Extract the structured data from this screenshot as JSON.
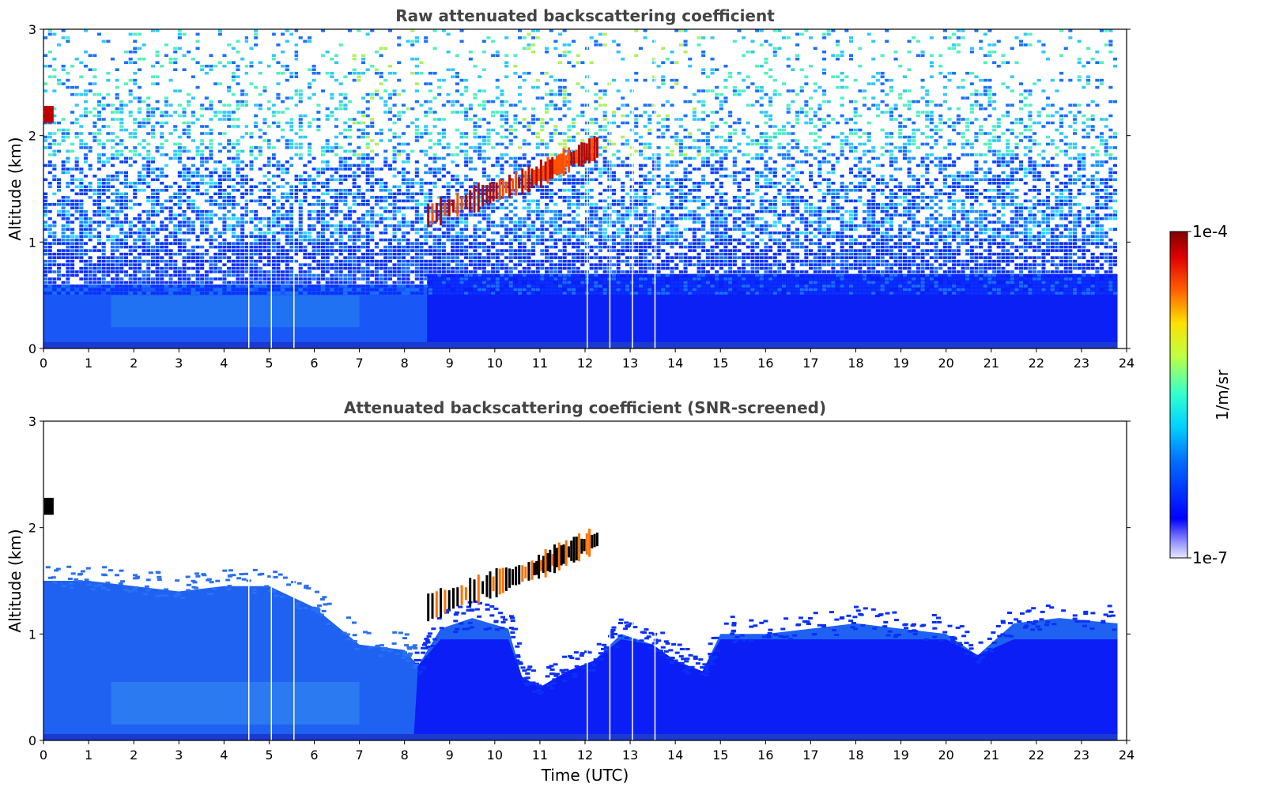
{
  "chart_data": [
    {
      "type": "heatmap",
      "title": "Raw attenuated backscattering coefficient",
      "xlabel": "",
      "ylabel": "Altitude (km)",
      "xlim": [
        0,
        24
      ],
      "ylim": [
        0,
        3
      ],
      "xticks": [
        0,
        1,
        2,
        3,
        4,
        5,
        6,
        7,
        8,
        9,
        10,
        11,
        12,
        13,
        14,
        15,
        16,
        17,
        18,
        19,
        20,
        21,
        22,
        23,
        24
      ],
      "yticks": [
        0,
        1,
        2,
        3
      ],
      "data_extent_x": [
        0,
        23.8
      ],
      "color_scale": "log",
      "gap_times": [
        4.55,
        5.05,
        5.55,
        12.05,
        12.55,
        13.05,
        13.55
      ],
      "features": {
        "boundary_layer_top_km": 0.6,
        "signal_noise_increase_above_km": 1.0,
        "aerosol_layer_top_km": 1.5,
        "rising_cloud_layer": [
          {
            "t": 8.5,
            "z": 1.25
          },
          {
            "t": 9.8,
            "z": 1.45
          },
          {
            "t": 10.8,
            "z": 1.6
          },
          {
            "t": 11.5,
            "z": 1.75
          },
          {
            "t": 12.3,
            "z": 1.9
          }
        ],
        "early_cloud": {
          "t": 0.05,
          "z": 2.2
        }
      }
    },
    {
      "type": "heatmap",
      "title": "Attenuated backscattering coefficient (SNR-screened)",
      "xlabel": "Time (UTC)",
      "ylabel": "Altitude (km)",
      "xlim": [
        0,
        24
      ],
      "ylim": [
        0,
        3
      ],
      "xticks": [
        0,
        1,
        2,
        3,
        4,
        5,
        6,
        7,
        8,
        9,
        10,
        11,
        12,
        13,
        14,
        15,
        16,
        17,
        18,
        19,
        20,
        21,
        22,
        23,
        24
      ],
      "yticks": [
        0,
        1,
        2,
        3
      ],
      "data_extent_x": [
        0,
        23.8
      ],
      "color_scale": "log",
      "gap_times": [
        4.55,
        5.05,
        5.55,
        12.05,
        12.55,
        13.05,
        13.55
      ],
      "signal_top_profile": [
        {
          "t": 0.0,
          "z": 1.5
        },
        {
          "t": 1.0,
          "z": 1.5
        },
        {
          "t": 2.0,
          "z": 1.45
        },
        {
          "t": 3.0,
          "z": 1.4
        },
        {
          "t": 4.0,
          "z": 1.45
        },
        {
          "t": 5.0,
          "z": 1.45
        },
        {
          "t": 6.0,
          "z": 1.25
        },
        {
          "t": 7.0,
          "z": 0.9
        },
        {
          "t": 8.0,
          "z": 0.85
        },
        {
          "t": 8.3,
          "z": 0.7
        },
        {
          "t": 8.8,
          "z": 1.05
        },
        {
          "t": 9.5,
          "z": 1.15
        },
        {
          "t": 10.3,
          "z": 1.05
        },
        {
          "t": 10.6,
          "z": 0.6
        },
        {
          "t": 11.0,
          "z": 0.5
        },
        {
          "t": 11.6,
          "z": 0.65
        },
        {
          "t": 12.2,
          "z": 0.75
        },
        {
          "t": 12.8,
          "z": 1.0
        },
        {
          "t": 13.5,
          "z": 0.9
        },
        {
          "t": 14.0,
          "z": 0.75
        },
        {
          "t": 14.6,
          "z": 0.65
        },
        {
          "t": 15.0,
          "z": 1.0
        },
        {
          "t": 16.0,
          "z": 1.0
        },
        {
          "t": 17.0,
          "z": 1.05
        },
        {
          "t": 18.0,
          "z": 1.1
        },
        {
          "t": 19.0,
          "z": 1.05
        },
        {
          "t": 20.0,
          "z": 1.0
        },
        {
          "t": 20.7,
          "z": 0.8
        },
        {
          "t": 21.5,
          "z": 1.1
        },
        {
          "t": 22.5,
          "z": 1.15
        },
        {
          "t": 23.8,
          "z": 1.1
        }
      ],
      "features": {
        "rising_cloud_layer": [
          {
            "t": 8.5,
            "z": 1.25
          },
          {
            "t": 9.8,
            "z": 1.45
          },
          {
            "t": 10.8,
            "z": 1.6
          },
          {
            "t": 11.5,
            "z": 1.75
          },
          {
            "t": 12.3,
            "z": 1.9
          }
        ],
        "early_cloud": {
          "t": 0.05,
          "z": 2.2
        }
      }
    }
  ],
  "colorbar": {
    "min_label": "1e-7",
    "max_label": "1e-4",
    "label": "1/m/sr",
    "colormap": "jet"
  },
  "colors": {
    "title": "#444444",
    "low_signal_white": "#ffffff",
    "boundary_layer_blue": "#1e5af0",
    "deep_blue": "#0a1ef5",
    "cloud_red": "#b40a00"
  }
}
